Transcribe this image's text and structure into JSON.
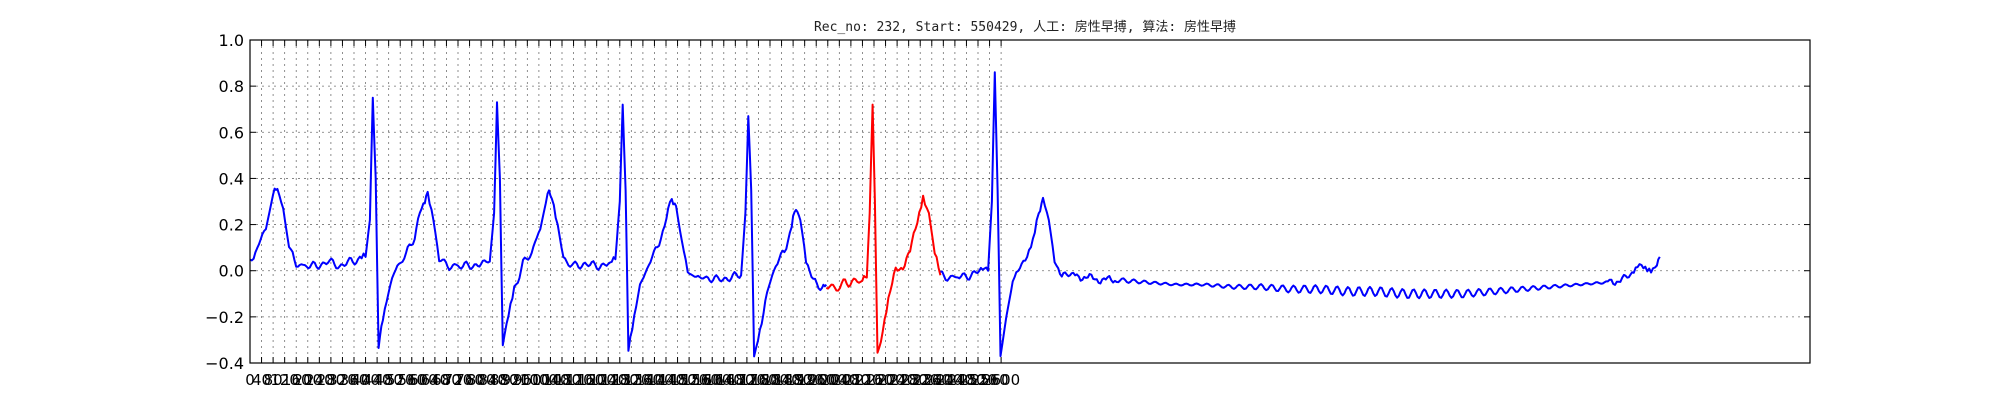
{
  "chart_data": {
    "type": "line",
    "title": "Rec_no: 232, Start: 550429, 人工: 房性早搏, 算法: 房性早搏",
    "xlabel": "",
    "ylabel": "",
    "xlim": [
      0,
      5400
    ],
    "ylim": [
      -0.4,
      1.0
    ],
    "yticks": [
      -0.4,
      -0.2,
      0.0,
      0.2,
      0.4,
      0.6,
      0.8,
      1.0
    ],
    "ytick_labels": [
      "−0.4",
      "−0.2",
      "0.0",
      "0.2",
      "0.4",
      "0.6",
      "0.8",
      "1.0"
    ],
    "xtick_step": 40,
    "xtick_labels": [
      "0",
      "40",
      "80",
      "120",
      "160",
      "200",
      "240",
      "280",
      "320",
      "360",
      "400",
      "440",
      "480",
      "520",
      "560",
      "600",
      "640",
      "680",
      "720",
      "760",
      "800",
      "840",
      "880",
      "920",
      "960",
      "1000",
      "1040",
      "1080",
      "1120",
      "1160",
      "1200",
      "1240",
      "1280",
      "1320",
      "1360",
      "1400",
      "1440",
      "1480",
      "1520",
      "1560",
      "1600",
      "1640",
      "1680",
      "1720",
      "1760",
      "1800",
      "1840",
      "1880",
      "1920",
      "1960",
      "2000",
      "2040",
      "2080",
      "2120",
      "2160",
      "2200",
      "2240",
      "2280",
      "2320",
      "2360",
      "2400",
      "2440",
      "2480",
      "2520",
      "2560",
      "2600"
    ],
    "grid": true,
    "series": [
      {
        "color": "#0000ff",
        "points": [
          [
            0,
            0.04
          ],
          [
            25,
            0.1
          ],
          [
            55,
            0.18
          ],
          [
            80,
            0.33
          ],
          [
            95,
            0.36
          ],
          [
            115,
            0.27
          ],
          [
            135,
            0.1
          ],
          [
            160,
            0.03
          ],
          [
            190,
            0.02
          ],
          [
            230,
            0.02
          ],
          [
            270,
            0.04
          ],
          [
            310,
            0.02
          ],
          [
            350,
            0.04
          ],
          [
            380,
            0.05
          ],
          [
            400,
            0.06
          ],
          [
            415,
            0.22
          ],
          [
            425,
            0.75
          ],
          [
            435,
            0.4
          ],
          [
            445,
            -0.33
          ],
          [
            460,
            -0.2
          ],
          [
            480,
            -0.08
          ],
          [
            510,
            0.02
          ],
          [
            540,
            0.07
          ],
          [
            570,
            0.15
          ],
          [
            600,
            0.3
          ],
          [
            615,
            0.33
          ],
          [
            635,
            0.22
          ],
          [
            655,
            0.05
          ],
          [
            690,
            0.02
          ],
          [
            720,
            0.02
          ],
          [
            760,
            0.02
          ],
          [
            800,
            0.03
          ],
          [
            830,
            0.04
          ],
          [
            845,
            0.25
          ],
          [
            855,
            0.73
          ],
          [
            865,
            0.4
          ],
          [
            875,
            -0.33
          ],
          [
            895,
            -0.2
          ],
          [
            915,
            -0.08
          ],
          [
            945,
            0.03
          ],
          [
            975,
            0.08
          ],
          [
            1005,
            0.18
          ],
          [
            1030,
            0.33
          ],
          [
            1045,
            0.33
          ],
          [
            1065,
            0.2
          ],
          [
            1085,
            0.05
          ],
          [
            1120,
            0.02
          ],
          [
            1160,
            0.03
          ],
          [
            1200,
            0.02
          ],
          [
            1240,
            0.03
          ],
          [
            1265,
            0.05
          ],
          [
            1280,
            0.3
          ],
          [
            1290,
            0.72
          ],
          [
            1300,
            0.35
          ],
          [
            1310,
            -0.33
          ],
          [
            1330,
            -0.2
          ],
          [
            1350,
            -0.07
          ],
          [
            1380,
            0.03
          ],
          [
            1410,
            0.1
          ],
          [
            1435,
            0.2
          ],
          [
            1460,
            0.31
          ],
          [
            1475,
            0.28
          ],
          [
            1495,
            0.12
          ],
          [
            1515,
            0.0
          ],
          [
            1545,
            -0.03
          ],
          [
            1580,
            -0.03
          ],
          [
            1620,
            -0.04
          ],
          [
            1660,
            -0.03
          ],
          [
            1700,
            -0.02
          ],
          [
            1715,
            0.25
          ],
          [
            1725,
            0.67
          ],
          [
            1735,
            0.35
          ],
          [
            1745,
            -0.37
          ],
          [
            1765,
            -0.25
          ],
          [
            1790,
            -0.1
          ],
          [
            1820,
            0.03
          ],
          [
            1850,
            0.08
          ],
          [
            1875,
            0.2
          ],
          [
            1890,
            0.27
          ],
          [
            1905,
            0.22
          ],
          [
            1925,
            0.05
          ],
          [
            1950,
            -0.05
          ],
          [
            1980,
            -0.07
          ],
          [
            1995,
            -0.06
          ]
        ]
      },
      {
        "color": "#ff0000",
        "points": [
          [
            1995,
            -0.06
          ],
          [
            2030,
            -0.08
          ],
          [
            2060,
            -0.05
          ],
          [
            2090,
            -0.05
          ],
          [
            2120,
            -0.04
          ],
          [
            2135,
            -0.03
          ],
          [
            2145,
            0.25
          ],
          [
            2155,
            0.72
          ],
          [
            2163,
            0.3
          ],
          [
            2172,
            -0.37
          ],
          [
            2190,
            -0.25
          ],
          [
            2210,
            -0.12
          ],
          [
            2235,
            0.0
          ],
          [
            2260,
            0.02
          ],
          [
            2285,
            0.08
          ],
          [
            2310,
            0.22
          ],
          [
            2330,
            0.33
          ],
          [
            2350,
            0.25
          ],
          [
            2370,
            0.08
          ],
          [
            2390,
            -0.02
          ]
        ]
      },
      {
        "color": "#0000ff",
        "points": [
          [
            2390,
            -0.02
          ],
          [
            2420,
            -0.03
          ],
          [
            2450,
            -0.03
          ],
          [
            2490,
            -0.02
          ],
          [
            2530,
            0.0
          ],
          [
            2555,
            0.0
          ],
          [
            2568,
            0.3
          ],
          [
            2578,
            0.86
          ],
          [
            2588,
            0.35
          ],
          [
            2598,
            -0.37
          ],
          [
            2618,
            -0.2
          ],
          [
            2640,
            -0.05
          ],
          [
            2665,
            0.03
          ],
          [
            2690,
            0.05
          ],
          [
            2710,
            0.12
          ],
          [
            2730,
            0.25
          ],
          [
            2745,
            0.3
          ],
          [
            2765,
            0.22
          ],
          [
            2785,
            0.05
          ],
          [
            2810,
            -0.02
          ],
          [
            2850,
            -0.02
          ],
          [
            2900,
            -0.03
          ],
          [
            2950,
            -0.04
          ],
          [
            3000,
            -0.04
          ],
          [
            3100,
            -0.05
          ],
          [
            3200,
            -0.06
          ],
          [
            3300,
            -0.06
          ],
          [
            3400,
            -0.07
          ],
          [
            3500,
            -0.07
          ],
          [
            3600,
            -0.08
          ],
          [
            3700,
            -0.08
          ],
          [
            3800,
            -0.09
          ],
          [
            3900,
            -0.09
          ],
          [
            4000,
            -0.1
          ],
          [
            4100,
            -0.1
          ],
          [
            4200,
            -0.1
          ],
          [
            4300,
            -0.09
          ],
          [
            4400,
            -0.08
          ],
          [
            4500,
            -0.07
          ],
          [
            4600,
            -0.06
          ],
          [
            4700,
            -0.05
          ],
          [
            4750,
            -0.04
          ],
          [
            4790,
            -0.01
          ],
          [
            4810,
            0.03
          ],
          [
            4830,
            0.02
          ],
          [
            4850,
            0.01
          ],
          [
            4870,
            0.03
          ],
          [
            4880,
            0.06
          ]
        ]
      }
    ]
  }
}
